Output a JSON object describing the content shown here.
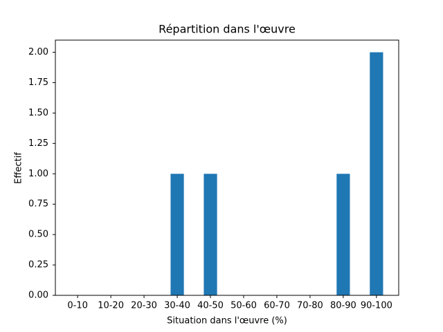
{
  "chart_data": {
    "type": "bar",
    "title": "Répartition dans l'œuvre",
    "x_label": "Situation dans l'œuvre (%)",
    "y_label": "Effectif",
    "categories": [
      "0-10",
      "10-20",
      "20-30",
      "30-40",
      "40-50",
      "50-60",
      "60-70",
      "70-80",
      "80-90",
      "90-100"
    ],
    "values": [
      0,
      0,
      0,
      1,
      1,
      0,
      0,
      0,
      1,
      2
    ],
    "color": "#1f77b4",
    "ylim": [
      0,
      2.1
    ],
    "yticks": [
      {
        "value": 0,
        "label": "0.00"
      },
      {
        "value": 0.25,
        "label": "0.25"
      },
      {
        "value": 0.5,
        "label": "0.50"
      },
      {
        "value": 0.75,
        "label": "0.75"
      },
      {
        "value": 1,
        "label": "1.00"
      },
      {
        "value": 1.25,
        "label": "1.25"
      },
      {
        "value": 1.5,
        "label": "1.50"
      },
      {
        "value": 1.75,
        "label": "1.75"
      },
      {
        "value": 2,
        "label": "2.00"
      }
    ],
    "grid": false
  }
}
